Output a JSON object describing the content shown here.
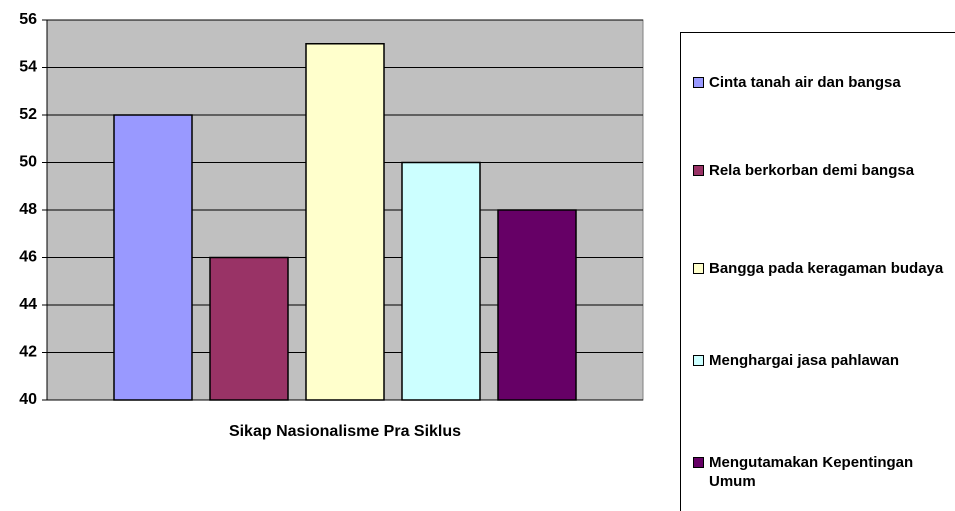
{
  "chart_data": {
    "type": "bar",
    "categories": [
      "Sikap Nasionalisme Pra Siklus"
    ],
    "series": [
      {
        "name": "Cinta tanah air dan bangsa",
        "color": "#9999ff",
        "values": [
          52
        ]
      },
      {
        "name": "Rela berkorban demi bangsa",
        "color": "#993366",
        "values": [
          46
        ]
      },
      {
        "name": "Bangga pada keragaman budaya",
        "color": "#ffffcc",
        "values": [
          55
        ]
      },
      {
        "name": "Menghargai jasa pahlawan",
        "color": "#ccffff",
        "values": [
          50
        ]
      },
      {
        "name": "Mengutamakan Kepentingan Umum",
        "color": "#660066",
        "values": [
          48
        ]
      }
    ],
    "ylim": [
      40,
      56
    ],
    "yticks": [
      40,
      42,
      44,
      46,
      48,
      50,
      52,
      54,
      56
    ],
    "grid": true,
    "legend": "right"
  }
}
